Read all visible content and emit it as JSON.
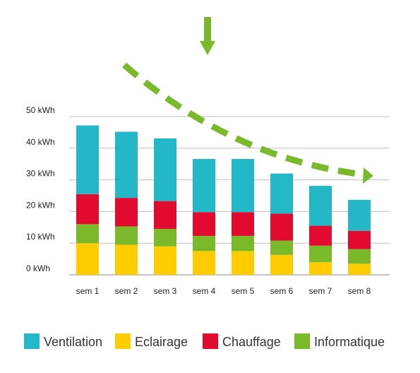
{
  "chart_data": {
    "type": "bar",
    "stacked": true,
    "categories": [
      "sem 1",
      "sem 2",
      "sem 3",
      "sem 4",
      "sem 5",
      "sem 6",
      "sem 7",
      "sem 8"
    ],
    "y_tick_labels": [
      "0 kWh",
      "10 kWh",
      "20 kWh",
      "30 kWh",
      "40 kWh",
      "50 kWh"
    ],
    "ylim": [
      0,
      50
    ],
    "grid": true,
    "legend_position": "bottom",
    "series": [
      {
        "name": "Eclairage",
        "color": "#FFCC00",
        "values": [
          10,
          9.5,
          9,
          7.5,
          7.5,
          6.3,
          4,
          3.5
        ]
      },
      {
        "name": "Informatique",
        "color": "#7AB929",
        "values": [
          6,
          5.8,
          5.5,
          4.8,
          4.8,
          4.5,
          5.2,
          4.6
        ]
      },
      {
        "name": "Chauffage",
        "color": "#E20A2E",
        "values": [
          9.5,
          9,
          8.8,
          7.5,
          7.5,
          8.5,
          6.3,
          5.8
        ]
      },
      {
        "name": "Ventilation",
        "color": "#23B7C8",
        "values": [
          21.7,
          20.9,
          19.8,
          16.8,
          16.8,
          12.7,
          12.6,
          9.8
        ]
      }
    ],
    "legend_order": [
      "Ventilation",
      "Eclairage",
      "Chauffage",
      "Informatique"
    ],
    "trend_arrow_color": "#7AB929"
  }
}
